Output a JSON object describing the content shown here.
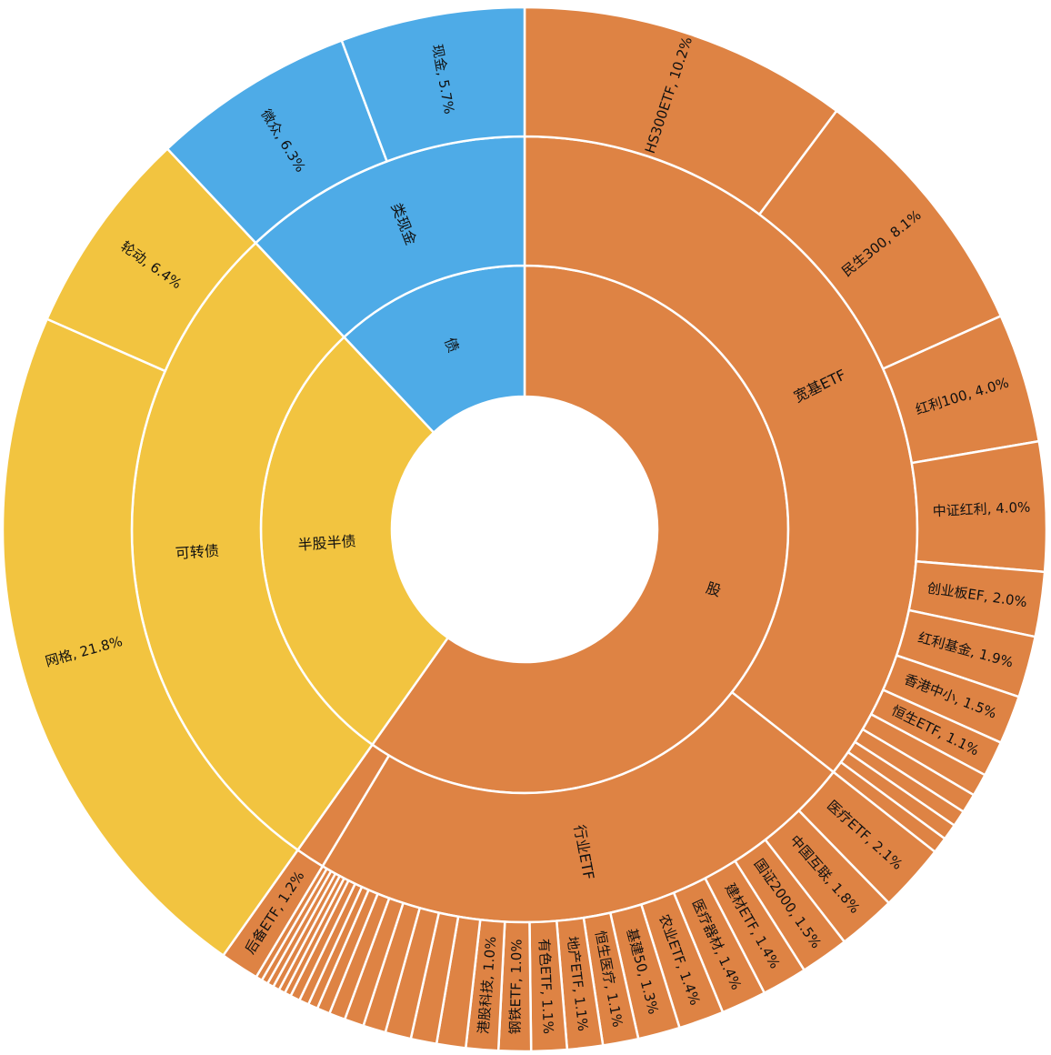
{
  "chart_data": {
    "type": "pie",
    "segments": [
      {
        "label": "股",
        "color": "#DE8344",
        "children": [
          {
            "label": "宽基ETF",
            "children": [
              {
                "label": "HS300ETF, 10.2%",
                "value": 10.2
              },
              {
                "label": "民生300, 8.1%",
                "value": 8.1
              },
              {
                "label": "红利100, 4.0%",
                "value": 4.0
              },
              {
                "label": "中证红利, 4.0%",
                "value": 4.0
              },
              {
                "label": "创业板EF, 2.0%",
                "value": 2.0
              },
              {
                "label": "红利基金, 1.9%",
                "value": 1.9
              },
              {
                "label": "香港中小, 1.5%",
                "value": 1.5
              },
              {
                "label": "恒生ETF, 1.1%",
                "value": 1.1
              },
              {
                "value": 0.7
              },
              {
                "value": 0.6
              },
              {
                "value": 0.5
              },
              {
                "value": 0.5
              },
              {
                "value": 0.5
              }
            ]
          },
          {
            "label": "行业ETF",
            "children": [
              {
                "label": "医疗ETF, 2.1%",
                "value": 2.1
              },
              {
                "label": "中国互联, 1.8%",
                "value": 1.8
              },
              {
                "label": "国证2000, 1.5%",
                "value": 1.5
              },
              {
                "label": "建材ETF, 1.4%",
                "value": 1.4
              },
              {
                "label": "医疗器材, 1.4%",
                "value": 1.4
              },
              {
                "label": "农业ETF, 1.4%",
                "value": 1.4
              },
              {
                "label": "基建50, 1.3%",
                "value": 1.3
              },
              {
                "label": "恒生医疗, 1.1%",
                "value": 1.1
              },
              {
                "label": "地产ETF, 1.1%",
                "value": 1.1
              },
              {
                "label": "有色ETF, 1.1%",
                "value": 1.1
              },
              {
                "label": "钢铁ETF, 1.0%",
                "value": 1.0
              },
              {
                "label": "港股科技, 1.0%",
                "value": 1.0
              },
              {
                "value": 0.9
              },
              {
                "value": 0.8
              },
              {
                "value": 0.8
              },
              {
                "value": 0.7
              },
              {
                "value": 0.6
              },
              {
                "value": 0.5
              },
              {
                "value": 0.4
              },
              {
                "value": 0.3
              },
              {
                "value": 0.3
              },
              {
                "value": 0.3
              },
              {
                "value": 0.2
              },
              {
                "value": 0.2
              },
              {
                "value": 0.2
              },
              {
                "value": 0.2
              },
              {
                "value": 0.2
              },
              {
                "value": 0.2
              }
            ]
          },
          {
            "children": [
              {
                "label": "后备ETF, 1.2%",
                "value": 1.2
              }
            ]
          }
        ]
      },
      {
        "label": "半股半债",
        "color": "#F2C440",
        "children": [
          {
            "label": "可转债",
            "children": [
              {
                "label": "网格, 21.8%",
                "value": 21.8
              },
              {
                "label": "轮动, 6.4%",
                "value": 6.4
              }
            ]
          }
        ]
      },
      {
        "label": "债",
        "color": "#4EABE7",
        "children": [
          {
            "label": "类现金",
            "children": [
              {
                "label": "微众, 6.3%",
                "value": 6.3
              },
              {
                "label": "现金, 5.7%",
                "value": 5.7
              }
            ]
          }
        ]
      }
    ]
  }
}
